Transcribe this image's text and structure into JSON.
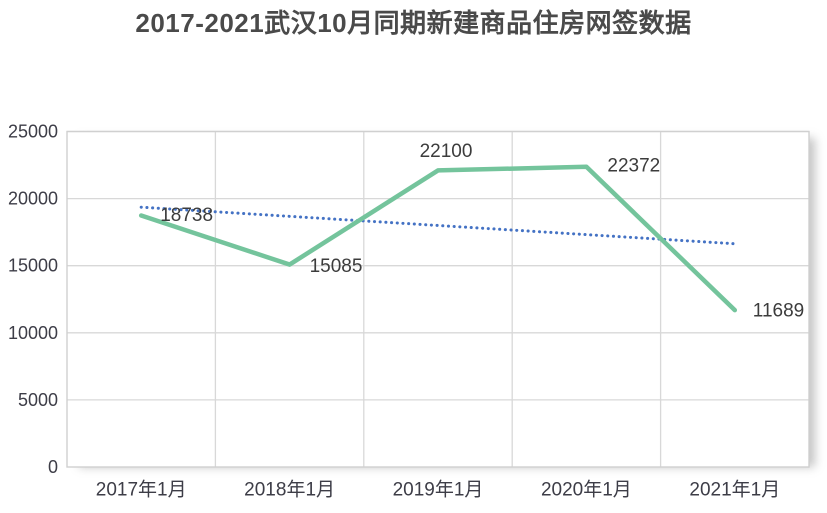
{
  "chart_data": {
    "type": "line",
    "title": "2017-2021武汉10月同期新建商品住房网签数据",
    "categories": [
      "2017年1月",
      "2018年1月",
      "2019年1月",
      "2020年1月",
      "2021年1月"
    ],
    "series": [
      {
        "name": "新建商品住房网签数据",
        "values": [
          18738,
          15085,
          22100,
          22372,
          11689
        ],
        "color": "#74c49c",
        "data_labels": [
          "18738",
          "15085",
          "22100",
          "22372",
          "11689"
        ]
      }
    ],
    "trendline": {
      "style": "dotted",
      "color": "#4472c4",
      "start_value": 19359,
      "end_value": 16635
    },
    "y_ticks": [
      "0",
      "5000",
      "10000",
      "15000",
      "20000",
      "25000"
    ],
    "y_tick_values": [
      0,
      5000,
      10000,
      15000,
      20000,
      25000
    ],
    "ylim": [
      0,
      25000
    ],
    "xlabel": "",
    "ylabel": "",
    "grid": true,
    "legend": "none",
    "colors": {
      "title": "#4a4a4a",
      "axis_labels": "#3d3d47",
      "data_labels": "#3c3c3c",
      "gridlines": "#d8d8d8",
      "plot_border": "#d0d0d0",
      "series_line": "#74c49c",
      "trendline": "#4472c4",
      "background": "#ffffff"
    }
  }
}
